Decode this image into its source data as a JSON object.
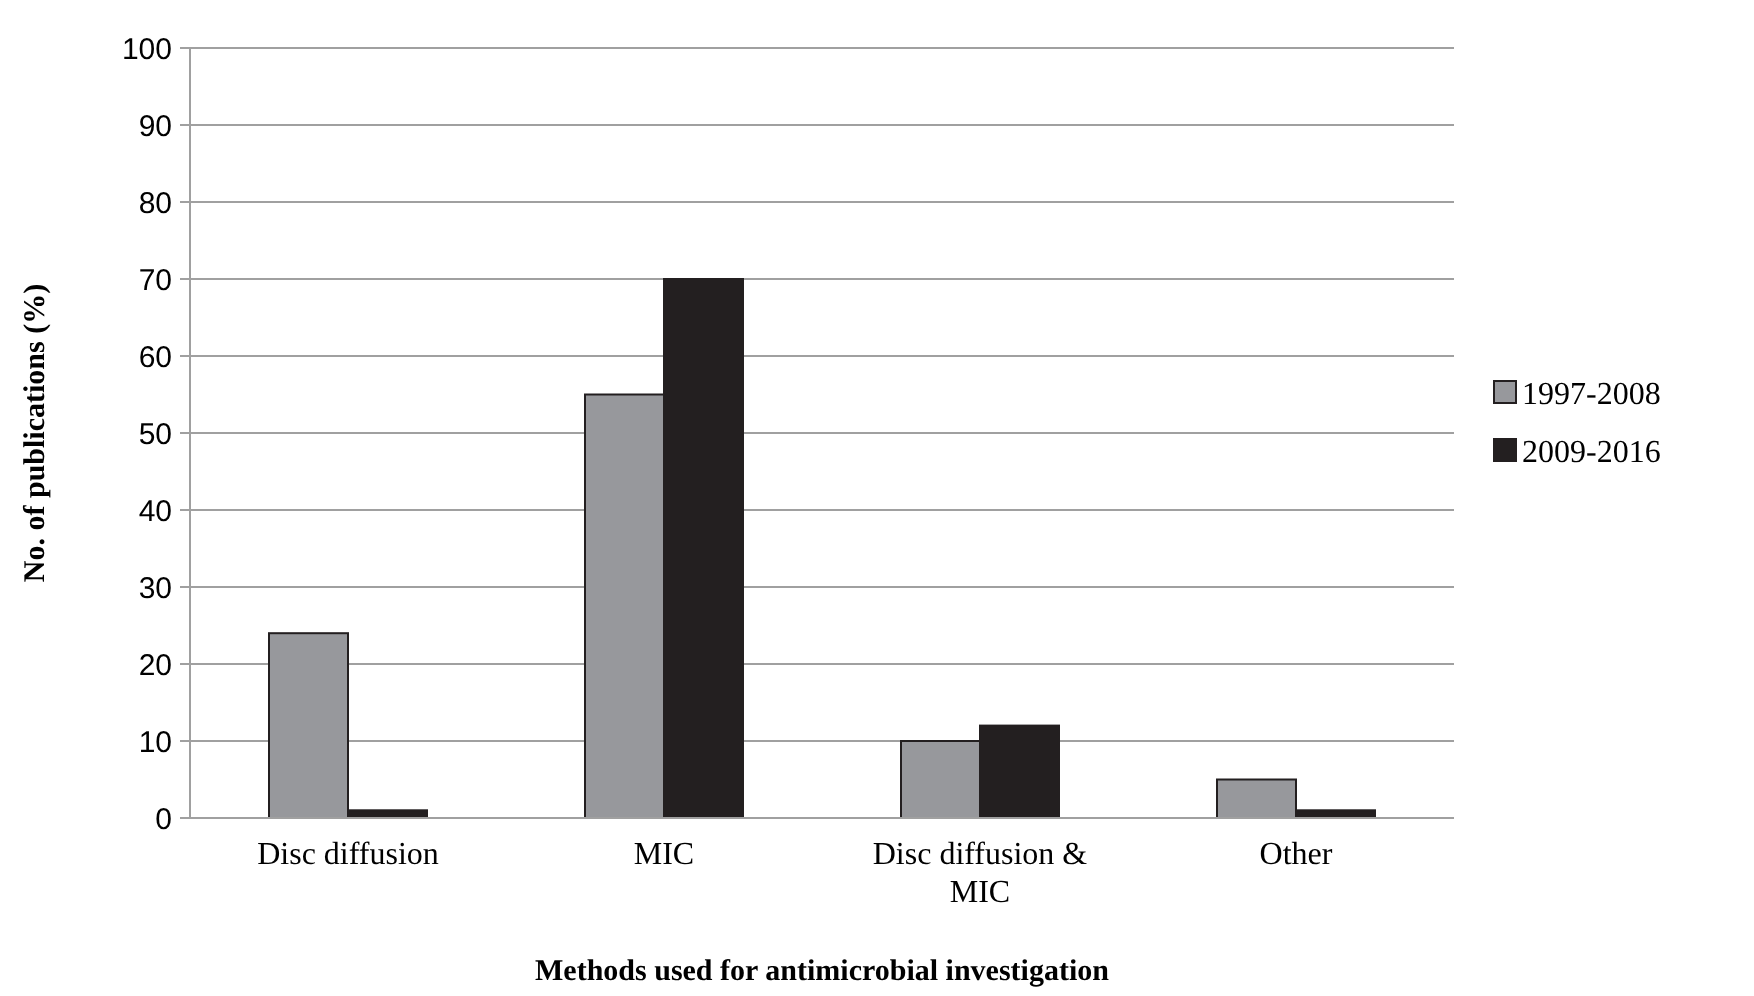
{
  "chart_data": {
    "type": "bar",
    "xlabel": "Methods used for antimicrobial investigation",
    "ylabel": "No. of publications (%)",
    "categories": [
      "Disc diffusion",
      "MIC",
      "Disc diffusion & MIC",
      "Other"
    ],
    "series": [
      {
        "name": "1997-2008",
        "color": "#97989c",
        "values": [
          24,
          55,
          10,
          5
        ]
      },
      {
        "name": "2009-2016",
        "color": "#231f20",
        "values": [
          1,
          70,
          12,
          1
        ]
      }
    ],
    "ylim": [
      0,
      100
    ],
    "yticks": [
      0,
      10,
      20,
      30,
      40,
      50,
      60,
      70,
      80,
      90,
      100
    ],
    "grid": "y",
    "legend": "right"
  }
}
